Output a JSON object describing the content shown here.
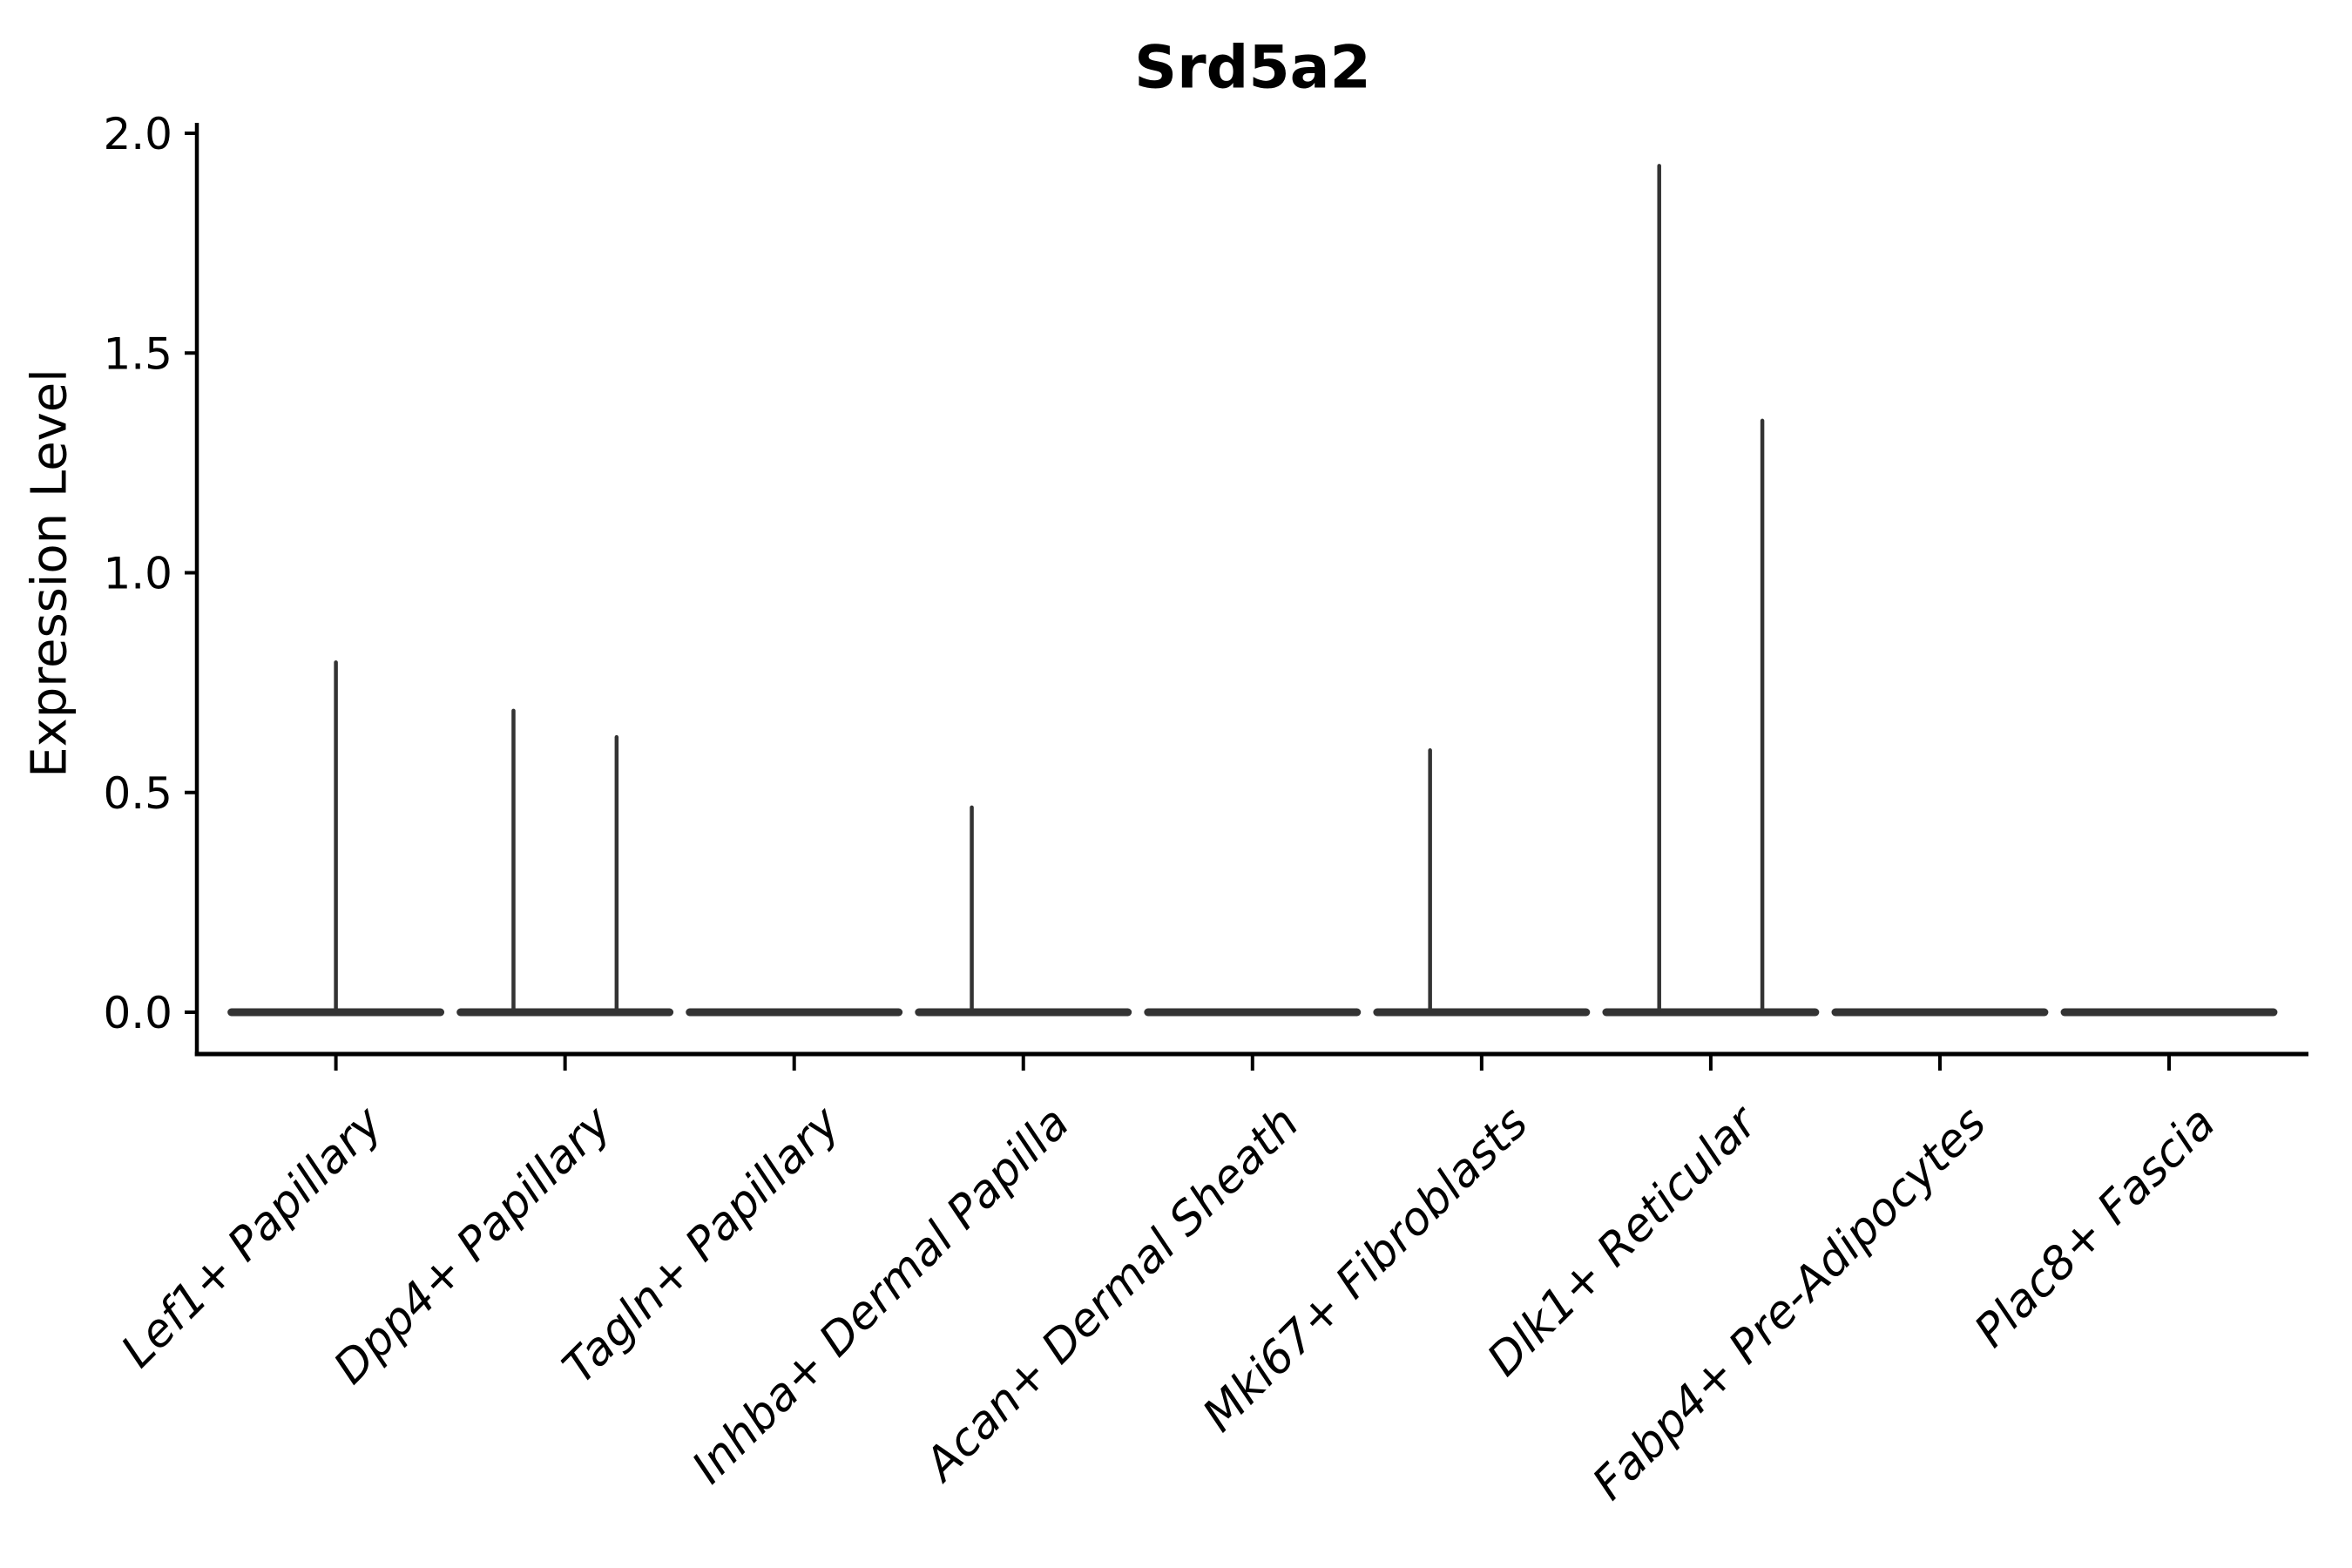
{
  "chart_data": {
    "type": "violin",
    "title": "Srd5a2",
    "ylabel": "Expression Level",
    "xlabel": "",
    "y_ticks": [
      0.0,
      0.5,
      1.0,
      1.5,
      2.0
    ],
    "ylim": [
      -0.1,
      2.02
    ],
    "grid": false,
    "legend": "none",
    "categories": [
      "Lef1+ Papillary",
      "Dpp4+ Papillary",
      "Tagln+ Papillary",
      "Inhba+ Dermal Papilla",
      "Acan+ Dermal Sheath",
      "Mki67+ Fibroblasts",
      "Dlk1+ Reticular",
      "Fabp4+ Pre-Adipocytes",
      "Plac8+ Fascia"
    ],
    "violin_halfwidth_frac": 0.456,
    "violins": [
      {
        "category": "Lef1+ Papillary",
        "peaks": [
          {
            "offset_frac": 0.0,
            "value": 0.8
          }
        ]
      },
      {
        "category": "Dpp4+ Papillary",
        "peaks": [
          {
            "offset_frac": -0.225,
            "value": 0.69
          },
          {
            "offset_frac": 0.225,
            "value": 0.63
          }
        ]
      },
      {
        "category": "Tagln+ Papillary",
        "peaks": []
      },
      {
        "category": "Inhba+ Dermal Papilla",
        "peaks": [
          {
            "offset_frac": -0.225,
            "value": 0.47
          }
        ]
      },
      {
        "category": "Acan+ Dermal Sheath",
        "peaks": []
      },
      {
        "category": "Mki67+ Fibroblasts",
        "peaks": [
          {
            "offset_frac": -0.225,
            "value": 0.6
          }
        ]
      },
      {
        "category": "Dlk1+ Reticular",
        "peaks": [
          {
            "offset_frac": -0.225,
            "value": 1.93
          },
          {
            "offset_frac": 0.225,
            "value": 1.35
          }
        ]
      },
      {
        "category": "Fabp4+ Pre-Adipocytes",
        "peaks": []
      },
      {
        "category": "Plac8+ Fascia",
        "peaks": []
      }
    ],
    "colors": {
      "violin": "#333333",
      "axis": "#000000",
      "background": "#ffffff"
    }
  }
}
